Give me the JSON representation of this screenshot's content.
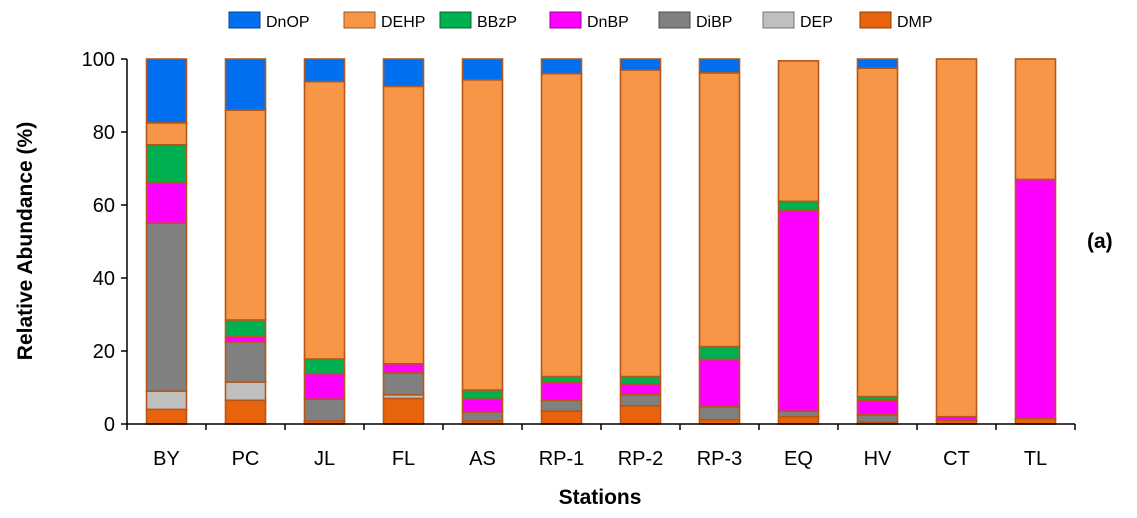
{
  "chart_data": {
    "type": "bar",
    "stacked": true,
    "panel_label": "(a)",
    "xlabel": "Stations",
    "ylabel": "Relative Abundance (%)",
    "ylim": [
      0,
      100
    ],
    "yticks": [
      0,
      20,
      40,
      60,
      80,
      100
    ],
    "legend_position": "top",
    "grid": false,
    "categories": [
      "BY",
      "PC",
      "JL",
      "FL",
      "AS",
      "RP-1",
      "RP-2",
      "RP-3",
      "EQ",
      "HV",
      "CT",
      "TL"
    ],
    "series": [
      {
        "name": "DMP",
        "color": "#e8640c",
        "values": [
          4,
          6.5,
          0.8,
          7,
          0.8,
          3.5,
          5,
          1.2,
          2,
          0.5,
          1,
          1.5
        ]
      },
      {
        "name": "DEP",
        "color": "#bfbfbf",
        "values": [
          5,
          5,
          0,
          1,
          0,
          0,
          0,
          0,
          0,
          0,
          0,
          0
        ]
      },
      {
        "name": "DiBP",
        "color": "#808080",
        "values": [
          46,
          11,
          6,
          6,
          2.5,
          3,
          3,
          3.5,
          1.5,
          2,
          0,
          0
        ]
      },
      {
        "name": "DnBP",
        "color": "#ff00ff",
        "values": [
          11,
          1.5,
          7,
          2.5,
          3.5,
          5,
          3,
          13,
          55,
          4,
          1,
          65.5
        ]
      },
      {
        "name": "BBzP",
        "color": "#00b050",
        "values": [
          10.5,
          4.5,
          4,
          0,
          2.5,
          1.5,
          2,
          3.5,
          2.5,
          1,
          0,
          0
        ]
      },
      {
        "name": "DEHP",
        "color": "#f79646",
        "values": [
          6,
          57.5,
          76,
          76,
          85,
          83,
          84,
          75,
          38.5,
          90,
          98,
          33
        ]
      },
      {
        "name": "DnOP",
        "color": "#0070f0",
        "values": [
          17.5,
          14,
          6.2,
          7.5,
          5.7,
          4,
          3,
          3.8,
          0,
          2.5,
          0,
          0
        ]
      }
    ],
    "legend_order": [
      "DnOP",
      "DEHP",
      "BBzP",
      "DnBP",
      "DiBP",
      "DEP",
      "DMP"
    ]
  }
}
